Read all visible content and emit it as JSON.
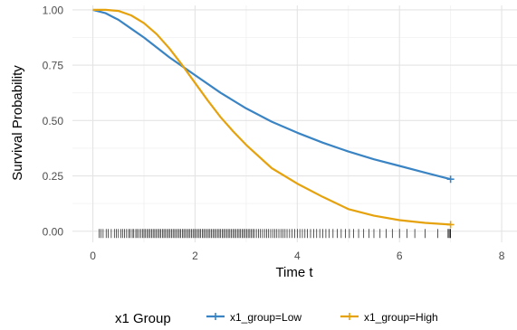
{
  "chart_data": {
    "type": "line",
    "xlabel": "Time t",
    "ylabel": "Survival Probability",
    "xlim": [
      -0.4,
      8.3
    ],
    "ylim": [
      -0.05,
      1.02
    ],
    "x_ticks": [
      0,
      2,
      4,
      6,
      8
    ],
    "y_ticks": [
      0.0,
      0.25,
      0.5,
      0.75,
      1.0
    ],
    "x_tick_labels": [
      "0",
      "2",
      "4",
      "6",
      "8"
    ],
    "y_tick_labels": [
      "0.00",
      "0.25",
      "0.50",
      "0.75",
      "1.00"
    ],
    "grid": true,
    "legend": {
      "title": "x1 Group",
      "position": "bottom"
    },
    "series": [
      {
        "name": "x1_group=Low",
        "color": "#3A84C4",
        "censor_end": true,
        "x": [
          0,
          0.25,
          0.5,
          0.75,
          1.0,
          1.25,
          1.5,
          1.75,
          2.0,
          2.5,
          3.0,
          3.5,
          4.0,
          4.5,
          5.0,
          5.5,
          6.0,
          6.5,
          7.0
        ],
        "y": [
          1.0,
          0.985,
          0.955,
          0.915,
          0.875,
          0.83,
          0.785,
          0.745,
          0.705,
          0.625,
          0.555,
          0.495,
          0.445,
          0.4,
          0.36,
          0.325,
          0.295,
          0.265,
          0.235
        ]
      },
      {
        "name": "x1_group=High",
        "color": "#E5A20D",
        "censor_end": true,
        "x": [
          0,
          0.25,
          0.5,
          0.75,
          1.0,
          1.25,
          1.5,
          1.75,
          2.0,
          2.25,
          2.5,
          2.75,
          3.0,
          3.5,
          4.0,
          4.5,
          5.0,
          5.5,
          6.0,
          6.5,
          7.0
        ],
        "y": [
          1.0,
          1.0,
          0.995,
          0.975,
          0.94,
          0.89,
          0.825,
          0.75,
          0.67,
          0.59,
          0.515,
          0.45,
          0.39,
          0.285,
          0.215,
          0.155,
          0.1,
          0.07,
          0.05,
          0.038,
          0.03
        ]
      }
    ],
    "rug": {
      "y": -0.01,
      "x": [
        0.12,
        0.16,
        0.2,
        0.26,
        0.3,
        0.36,
        0.42,
        0.46,
        0.5,
        0.55,
        0.58,
        0.62,
        0.66,
        0.7,
        0.73,
        0.77,
        0.8,
        0.84,
        0.87,
        0.9,
        0.94,
        0.97,
        1.0,
        1.03,
        1.06,
        1.09,
        1.12,
        1.15,
        1.18,
        1.21,
        1.24,
        1.27,
        1.3,
        1.33,
        1.36,
        1.39,
        1.42,
        1.45,
        1.48,
        1.51,
        1.54,
        1.57,
        1.6,
        1.63,
        1.66,
        1.69,
        1.72,
        1.75,
        1.78,
        1.81,
        1.84,
        1.87,
        1.9,
        1.93,
        1.96,
        1.99,
        2.02,
        2.05,
        2.08,
        2.11,
        2.14,
        2.17,
        2.2,
        2.23,
        2.26,
        2.29,
        2.32,
        2.35,
        2.38,
        2.41,
        2.44,
        2.47,
        2.5,
        2.53,
        2.56,
        2.59,
        2.62,
        2.65,
        2.68,
        2.71,
        2.74,
        2.77,
        2.8,
        2.83,
        2.86,
        2.89,
        2.92,
        2.95,
        2.98,
        3.01,
        3.04,
        3.07,
        3.1,
        3.13,
        3.16,
        3.2,
        3.24,
        3.28,
        3.32,
        3.36,
        3.4,
        3.44,
        3.48,
        3.52,
        3.56,
        3.6,
        3.64,
        3.68,
        3.72,
        3.76,
        3.8,
        3.85,
        3.9,
        3.95,
        4.0,
        4.05,
        4.1,
        4.15,
        4.2,
        4.26,
        4.32,
        4.38,
        4.44,
        4.5,
        4.56,
        4.62,
        4.7,
        4.78,
        4.86,
        4.94,
        5.02,
        5.1,
        5.2,
        5.3,
        5.4,
        5.5,
        5.62,
        5.74,
        5.86,
        6.0,
        6.15,
        6.3,
        6.5,
        6.75,
        6.95,
        6.97,
        6.99,
        7.0
      ]
    }
  }
}
